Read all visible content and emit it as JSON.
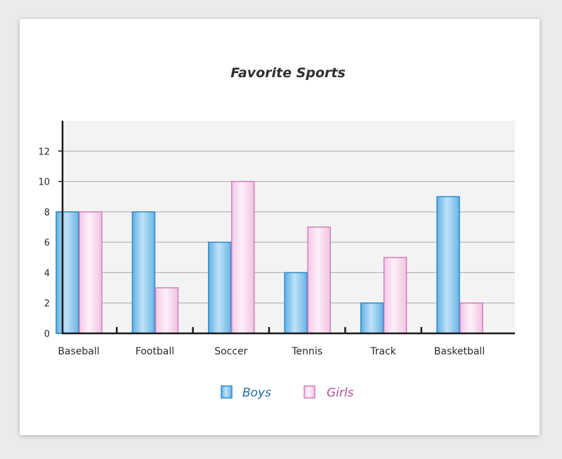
{
  "chart_data": {
    "type": "bar",
    "title": "Favorite Sports",
    "categories": [
      "Baseball",
      "Football",
      "Soccer",
      "Tennis",
      "Track",
      "Basketball"
    ],
    "series": [
      {
        "name": "Boys",
        "values": [
          8,
          8,
          6,
          4,
          2,
          9
        ],
        "color": "#2d8ac9",
        "text_color": "#1f6fa8"
      },
      {
        "name": "Girls",
        "values": [
          8,
          3,
          10,
          7,
          5,
          2
        ],
        "color": "#d07fbd",
        "text_color": "#b34f9a"
      }
    ],
    "xlabel": "",
    "ylabel": "",
    "ylim": [
      0,
      14
    ],
    "yticks": [
      0,
      2,
      4,
      6,
      8,
      10,
      12
    ],
    "grid": true,
    "legend_position": "bottom-center"
  }
}
